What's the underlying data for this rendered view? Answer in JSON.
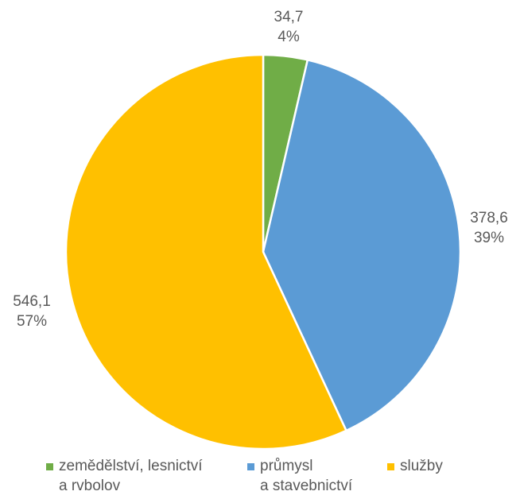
{
  "chart_data": {
    "type": "pie",
    "title": "",
    "start_angle_deg": 0,
    "direction": "clockwise",
    "slices": [
      {
        "name": "zemědělství, lesnictví a rvbolov",
        "value": 34.7,
        "value_label": "34,7",
        "percent_label": "4%",
        "color": "#70AD47"
      },
      {
        "name": "průmysl a stavebnictví",
        "value": 378.6,
        "value_label": "378,6",
        "percent_label": "39%",
        "color": "#5B9BD5"
      },
      {
        "name": "služby",
        "value": 546.1,
        "value_label": "546,1",
        "percent_label": "57%",
        "color": "#FFC000"
      }
    ],
    "legend": {
      "position": "bottom",
      "items": [
        {
          "lines": [
            "zemědělství, lesnictví",
            "a rvbolov"
          ],
          "color": "#70AD47"
        },
        {
          "lines": [
            "průmysl",
            "a stavebnictví"
          ],
          "color": "#5B9BD5"
        },
        {
          "lines": [
            "služby"
          ],
          "color": "#FFC000"
        }
      ]
    }
  }
}
